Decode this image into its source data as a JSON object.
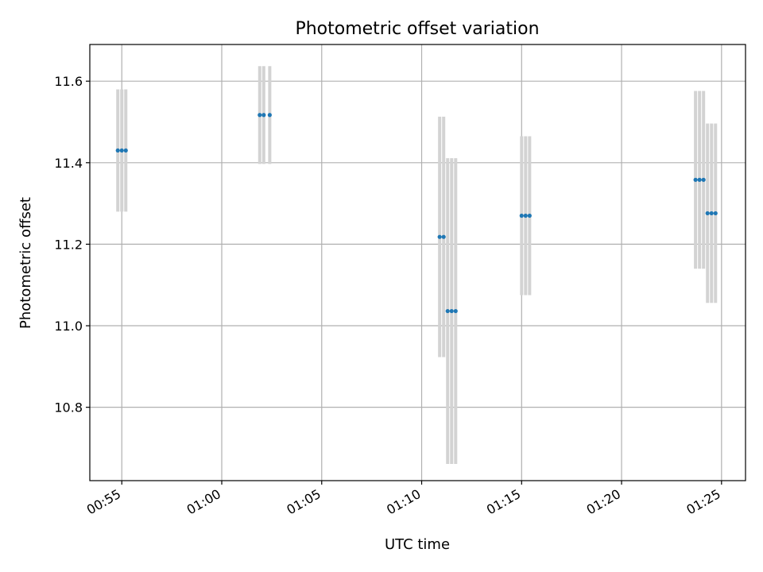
{
  "chart_data": {
    "type": "scatter",
    "title": "Photometric offset variation",
    "xlabel": "UTC time",
    "ylabel": "Photometric offset",
    "x_unit": "UTC time (HH:MM)",
    "xlim": [
      "00:53:24",
      "01:26:12"
    ],
    "ylim": [
      10.62,
      11.69
    ],
    "x_ticks": [
      "00:55",
      "01:00",
      "01:05",
      "01:10",
      "01:15",
      "01:20",
      "01:25"
    ],
    "y_ticks": [
      10.8,
      11.0,
      11.2,
      11.4,
      11.6
    ],
    "grid": true,
    "marker_color": "#1f77b4",
    "errorbar_color": "#d3d3d3",
    "points": [
      {
        "x": "00:54:48",
        "y": 11.43,
        "yerr": 0.15
      },
      {
        "x": "00:55:00",
        "y": 11.43,
        "yerr": 0.15
      },
      {
        "x": "00:55:12",
        "y": 11.43,
        "yerr": 0.15
      },
      {
        "x": "01:01:54",
        "y": 11.517,
        "yerr": 0.12
      },
      {
        "x": "01:02:06",
        "y": 11.517,
        "yerr": 0.12
      },
      {
        "x": "01:02:24",
        "y": 11.517,
        "yerr": 0.12
      },
      {
        "x": "01:10:54",
        "y": 11.218,
        "yerr": 0.295
      },
      {
        "x": "01:11:06",
        "y": 11.218,
        "yerr": 0.295
      },
      {
        "x": "01:11:18",
        "y": 11.036,
        "yerr": 0.375
      },
      {
        "x": "01:11:30",
        "y": 11.036,
        "yerr": 0.375
      },
      {
        "x": "01:11:42",
        "y": 11.036,
        "yerr": 0.375
      },
      {
        "x": "01:15:00",
        "y": 11.27,
        "yerr": 0.195
      },
      {
        "x": "01:15:12",
        "y": 11.27,
        "yerr": 0.195
      },
      {
        "x": "01:15:24",
        "y": 11.27,
        "yerr": 0.195
      },
      {
        "x": "01:23:42",
        "y": 11.358,
        "yerr": 0.218
      },
      {
        "x": "01:23:54",
        "y": 11.358,
        "yerr": 0.218
      },
      {
        "x": "01:24:06",
        "y": 11.358,
        "yerr": 0.218
      },
      {
        "x": "01:24:18",
        "y": 11.276,
        "yerr": 0.22
      },
      {
        "x": "01:24:30",
        "y": 11.276,
        "yerr": 0.22
      },
      {
        "x": "01:24:42",
        "y": 11.276,
        "yerr": 0.22
      }
    ]
  }
}
